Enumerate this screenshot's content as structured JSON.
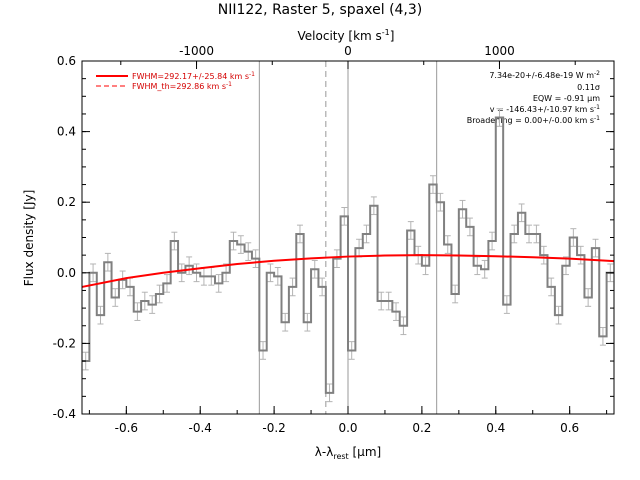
{
  "chart_data": {
    "type": "line",
    "title": "NII122, Raster 5, spaxel (4,3)",
    "xlabel_main": "λ-λ",
    "xlabel_sub": "rest",
    "xlabel_unit": " [μm]",
    "ylabel": "Flux density [Jy]",
    "top_axis_label": "Velocity [km s",
    "top_axis_label_sup": "-1",
    "top_axis_label_end": "]",
    "xlim": [
      -0.72,
      0.72
    ],
    "ylim": [
      -0.4,
      0.6
    ],
    "x_ticks": [
      "-0.6",
      "-0.4",
      "-0.2",
      "0.0",
      "0.2",
      "0.4",
      "0.6"
    ],
    "x_tick_values": [
      -0.6,
      -0.4,
      -0.2,
      0.0,
      0.2,
      0.4,
      0.6
    ],
    "y_ticks": [
      "-0.4",
      "-0.2",
      "0.0",
      "0.2",
      "0.4",
      "0.6"
    ],
    "y_tick_values": [
      -0.4,
      -0.2,
      0.0,
      0.2,
      0.4,
      0.6
    ],
    "top_ticks": [
      "-1000",
      "0",
      "1000"
    ],
    "top_tick_positions_um": [
      -0.41,
      0.0,
      0.41
    ],
    "vertical_lines": [
      -0.24,
      0.0,
      0.24
    ],
    "dashed_line": -0.06,
    "spectrum": {
      "name": "data",
      "x": [
        -0.72,
        -0.7,
        -0.68,
        -0.66,
        -0.64,
        -0.62,
        -0.6,
        -0.58,
        -0.56,
        -0.54,
        -0.52,
        -0.5,
        -0.48,
        -0.46,
        -0.44,
        -0.42,
        -0.4,
        -0.38,
        -0.36,
        -0.34,
        -0.32,
        -0.3,
        -0.28,
        -0.26,
        -0.24,
        -0.22,
        -0.2,
        -0.18,
        -0.16,
        -0.14,
        -0.12,
        -0.1,
        -0.08,
        -0.06,
        -0.04,
        -0.02,
        0.0,
        0.02,
        0.04,
        0.06,
        0.08,
        0.1,
        0.12,
        0.14,
        0.16,
        0.18,
        0.2,
        0.22,
        0.24,
        0.26,
        0.28,
        0.3,
        0.32,
        0.34,
        0.36,
        0.38,
        0.4,
        0.42,
        0.44,
        0.46,
        0.48,
        0.5,
        0.52,
        0.54,
        0.56,
        0.58,
        0.6,
        0.62,
        0.64,
        0.66,
        0.68,
        0.7
      ],
      "y": [
        -0.25,
        0.0,
        -0.12,
        0.03,
        -0.07,
        -0.02,
        -0.04,
        -0.11,
        -0.08,
        -0.09,
        -0.06,
        -0.03,
        0.09,
        0.0,
        0.02,
        0.0,
        -0.01,
        -0.01,
        -0.03,
        0.0,
        0.09,
        0.08,
        0.06,
        0.04,
        -0.22,
        0.0,
        -0.01,
        -0.14,
        -0.04,
        0.11,
        -0.14,
        0.01,
        -0.04,
        -0.34,
        0.04,
        0.16,
        -0.22,
        0.07,
        0.11,
        0.19,
        -0.08,
        -0.08,
        -0.11,
        -0.15,
        0.12,
        0.05,
        0.02,
        0.25,
        0.2,
        0.08,
        -0.06,
        0.18,
        0.13,
        0.02,
        0.01,
        0.09,
        0.44,
        -0.09,
        0.11,
        0.17,
        0.11,
        0.11,
        0.05,
        -0.04,
        -0.12,
        0.02,
        0.1,
        0.05,
        -0.07,
        0.07,
        -0.18,
        0.0
      ],
      "err": 0.025
    },
    "fit": {
      "name": "FWHM=292.17+/-25.84 km s-1",
      "x": [
        -0.72,
        -0.6,
        -0.5,
        -0.4,
        -0.3,
        -0.2,
        -0.1,
        0.0,
        0.1,
        0.2,
        0.3,
        0.4,
        0.5,
        0.6,
        0.72
      ],
      "y": [
        -0.04,
        -0.015,
        0.0,
        0.013,
        0.025,
        0.034,
        0.041,
        0.046,
        0.049,
        0.05,
        0.049,
        0.047,
        0.044,
        0.04,
        0.033
      ],
      "color": "#ff0000"
    },
    "legend": {
      "entry1": "FWHM=292.17+/-25.84 km s",
      "entry1_sup": "-1",
      "entry2": "FWHM_th=292.86 km s",
      "entry2_sup": "-1",
      "color": "#d40000"
    },
    "annotations": {
      "flux": "7.34e-20+/-6.48e-19 W m",
      "flux_sup": "-2",
      "sigma": "0.11σ",
      "eqw": "EQW = -0.91 μm",
      "vel": "v = -146.43+/-10.97 km s",
      "vel_sup": "-1",
      "broad": "Broadening = 0.00+/-0.00 km s",
      "broad_sup": "-1"
    },
    "colors": {
      "spectrum": "#808080",
      "errorbar": "#b4b4b4",
      "fit": "#ff0000",
      "lines": "#999999"
    }
  }
}
